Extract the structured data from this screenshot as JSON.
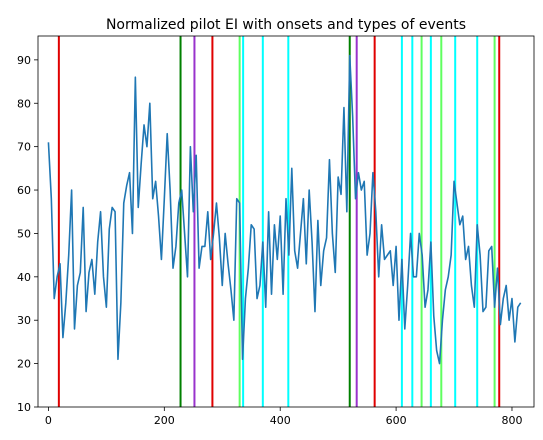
{
  "chart_data": {
    "type": "line",
    "title": "Normalized pilot EI with onsets and types of events",
    "xlabel": "",
    "ylabel": "",
    "xlim": [
      -18,
      838
    ],
    "ylim": [
      10,
      95.5
    ],
    "xticks": [
      0,
      200,
      400,
      600,
      800
    ],
    "yticks": [
      10,
      20,
      30,
      40,
      50,
      60,
      70,
      80,
      90
    ],
    "grid": false,
    "legend": "none",
    "series": [
      {
        "color": "#1f77b4",
        "x": [
          0,
          5,
          10,
          15,
          20,
          25,
          30,
          35,
          40,
          45,
          50,
          55,
          60,
          65,
          70,
          75,
          80,
          85,
          90,
          95,
          100,
          105,
          110,
          115,
          120,
          125,
          130,
          135,
          140,
          145,
          150,
          155,
          160,
          165,
          170,
          175,
          180,
          185,
          190,
          195,
          200,
          205,
          210,
          215,
          220,
          225,
          230,
          235,
          240,
          245,
          250,
          255,
          260,
          265,
          270,
          275,
          280,
          285,
          290,
          295,
          300,
          305,
          310,
          315,
          320,
          325,
          330,
          335,
          340,
          345,
          350,
          355,
          360,
          365,
          370,
          375,
          380,
          385,
          390,
          395,
          400,
          405,
          410,
          415,
          420,
          425,
          430,
          435,
          440,
          445,
          450,
          455,
          460,
          465,
          470,
          475,
          480,
          485,
          490,
          495,
          500,
          505,
          510,
          515,
          520,
          525,
          530,
          535,
          540,
          545,
          550,
          555,
          560,
          565,
          570,
          575,
          580,
          585,
          590,
          595,
          600,
          605,
          610,
          615,
          620,
          625,
          630,
          635,
          640,
          645,
          650,
          655,
          660,
          665,
          670,
          675,
          680,
          685,
          690,
          695,
          700,
          705,
          710,
          715,
          720,
          725,
          730,
          735,
          740,
          745,
          750,
          755,
          760,
          765,
          770,
          775,
          780,
          785,
          790,
          795,
          800,
          805,
          810,
          815
        ],
        "values": [
          71,
          58,
          35,
          40,
          43,
          26,
          34,
          45,
          60,
          28,
          38,
          41,
          56,
          32,
          41,
          44,
          36,
          48,
          55,
          40,
          33,
          51,
          56,
          55,
          21,
          34,
          57,
          61,
          64,
          50,
          86,
          56,
          66,
          75,
          70,
          80,
          58,
          62,
          54,
          44,
          58,
          73,
          60,
          42,
          47,
          57,
          60,
          50,
          40,
          70,
          55,
          68,
          42,
          47,
          47,
          55,
          44,
          50,
          57,
          49,
          38,
          50,
          43,
          37,
          30,
          58,
          57,
          21,
          35,
          42,
          52,
          51,
          35,
          38,
          48,
          33,
          55,
          36,
          52,
          44,
          54,
          36,
          58,
          45,
          65,
          46,
          42,
          50,
          58,
          43,
          60,
          48,
          32,
          53,
          38,
          46,
          49,
          67,
          50,
          41,
          63,
          59,
          79,
          55,
          91,
          77,
          58,
          64,
          60,
          62,
          45,
          50,
          64,
          55,
          40,
          52,
          44,
          45,
          46,
          38,
          47,
          30,
          44,
          28,
          38,
          50,
          40,
          40,
          50,
          45,
          33,
          37,
          48,
          31,
          23,
          20,
          30,
          37,
          40,
          45,
          62,
          57,
          52,
          54,
          44,
          47,
          38,
          33,
          52,
          45,
          32,
          33,
          46,
          47,
          33,
          42,
          29,
          35,
          38,
          30,
          35,
          25,
          33,
          34
        ]
      }
    ],
    "event_lines": [
      {
        "x": 18,
        "color": "#e00000"
      },
      {
        "x": 228,
        "color": "#008000"
      },
      {
        "x": 252,
        "color": "#9932cc"
      },
      {
        "x": 283,
        "color": "#e00000"
      },
      {
        "x": 330,
        "color": "#5fff5f"
      },
      {
        "x": 336,
        "color": "#00ffff"
      },
      {
        "x": 370,
        "color": "#00ffff"
      },
      {
        "x": 414,
        "color": "#00ffff"
      },
      {
        "x": 520,
        "color": "#008000"
      },
      {
        "x": 532,
        "color": "#9932cc"
      },
      {
        "x": 563,
        "color": "#e00000"
      },
      {
        "x": 610,
        "color": "#00ffff"
      },
      {
        "x": 628,
        "color": "#00ffff"
      },
      {
        "x": 644,
        "color": "#5fff5f"
      },
      {
        "x": 660,
        "color": "#00ffff"
      },
      {
        "x": 678,
        "color": "#5fff5f"
      },
      {
        "x": 702,
        "color": "#00ffff"
      },
      {
        "x": 740,
        "color": "#00ffff"
      },
      {
        "x": 770,
        "color": "#5fff5f"
      },
      {
        "x": 778,
        "color": "#e00000"
      }
    ]
  }
}
